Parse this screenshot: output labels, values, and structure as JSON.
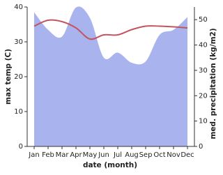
{
  "chart_data": {
    "type": "line-area",
    "categories": [
      "Jan",
      "Feb",
      "Mar",
      "Apr",
      "May",
      "Jun",
      "Jul",
      "Aug",
      "Sep",
      "Oct",
      "Nov",
      "Dec"
    ],
    "x_label": "date (month)",
    "y_label": "max temp (C)",
    "y2_label": "med. precipitation (kg/m2)",
    "ylim": [
      0,
      40
    ],
    "yticks": [
      0,
      10,
      20,
      30,
      40
    ],
    "y2lim": [
      0,
      55
    ],
    "y2ticks": [
      0,
      10,
      20,
      30,
      40,
      50
    ],
    "series": [
      {
        "name": "max temp",
        "type": "line",
        "color": "#c4545c",
        "values": [
          34.5,
          36.2,
          35.8,
          34,
          30.8,
          32,
          32,
          33.5,
          34.5,
          34.5,
          34.3,
          34
        ]
      },
      {
        "name": "precipitation",
        "type": "area",
        "axis": "y2",
        "color": "#a9b4ef",
        "values": [
          52.9,
          46,
          43.3,
          54.8,
          50.7,
          35,
          37,
          33,
          33.5,
          44,
          46,
          51
        ]
      }
    ]
  }
}
